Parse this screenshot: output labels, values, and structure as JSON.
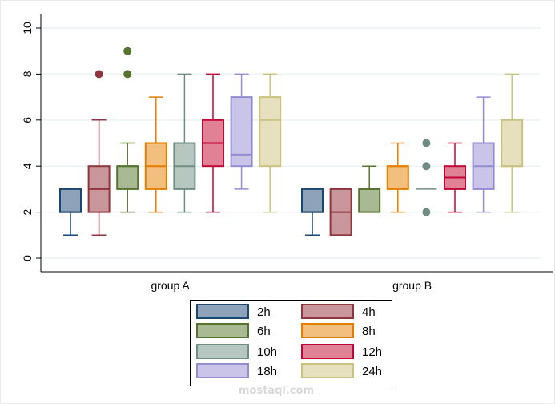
{
  "chart_data": {
    "type": "box",
    "title": "",
    "xlabel": "",
    "ylabel": "",
    "ylim": [
      0,
      10
    ],
    "yticks": [
      0,
      2,
      4,
      6,
      8,
      10
    ],
    "ytick_labels": [
      "0",
      "2",
      "4",
      "6",
      "8",
      "10"
    ],
    "grid": true,
    "legend_position": "bottom",
    "categories": [
      "group A",
      "group B"
    ],
    "series": [
      {
        "name": "2h",
        "fill": "#8ea3b9",
        "stroke": "#1a476f",
        "groups": [
          {
            "q1": 2,
            "median": 2,
            "q3": 3,
            "whisker_low": 1,
            "whisker_high": 3,
            "outliers": []
          },
          {
            "q1": 2,
            "median": 2,
            "q3": 3,
            "whisker_low": 1,
            "whisker_high": 3,
            "outliers": []
          }
        ]
      },
      {
        "name": "4h",
        "fill": "#c8969b",
        "stroke": "#90353b",
        "groups": [
          {
            "q1": 2,
            "median": 3,
            "q3": 4,
            "whisker_low": 1,
            "whisker_high": 6,
            "outliers": [
              8
            ]
          },
          {
            "q1": 1,
            "median": 2,
            "q3": 3,
            "whisker_low": 1,
            "whisker_high": 3,
            "outliers": []
          }
        ]
      },
      {
        "name": "6h",
        "fill": "#a8b994",
        "stroke": "#55752f",
        "groups": [
          {
            "q1": 3,
            "median": 4,
            "q3": 4,
            "whisker_low": 2,
            "whisker_high": 5,
            "outliers": [
              8,
              9
            ]
          },
          {
            "q1": 2,
            "median": 3,
            "q3": 3,
            "whisker_low": 2,
            "whisker_high": 4,
            "outliers": []
          }
        ]
      },
      {
        "name": "8h",
        "fill": "#f2bf7f",
        "stroke": "#e37e00",
        "groups": [
          {
            "q1": 3,
            "median": 4,
            "q3": 5,
            "whisker_low": 2,
            "whisker_high": 7,
            "outliers": []
          },
          {
            "q1": 3,
            "median": 4,
            "q3": 4,
            "whisker_low": 2,
            "whisker_high": 5,
            "outliers": []
          }
        ]
      },
      {
        "name": "10h",
        "fill": "#b6c6c0",
        "stroke": "#6e8e84",
        "groups": [
          {
            "q1": 3,
            "median": 4,
            "q3": 5,
            "whisker_low": 2,
            "whisker_high": 8,
            "outliers": []
          },
          {
            "q1": 3,
            "median": 3,
            "q3": 3,
            "whisker_low": 3,
            "whisker_high": 3,
            "outliers": [
              2,
              4,
              5
            ]
          }
        ]
      },
      {
        "name": "12h",
        "fill": "#e08196",
        "stroke": "#c10534",
        "groups": [
          {
            "q1": 4,
            "median": 5,
            "q3": 6,
            "whisker_low": 2,
            "whisker_high": 8,
            "outliers": []
          },
          {
            "q1": 3,
            "median": 3.5,
            "q3": 4,
            "whisker_low": 2,
            "whisker_high": 5,
            "outliers": []
          }
        ]
      },
      {
        "name": "18h",
        "fill": "#cac4e8",
        "stroke": "#938dd2",
        "groups": [
          {
            "q1": 4,
            "median": 4.5,
            "q3": 7,
            "whisker_low": 3,
            "whisker_high": 8,
            "outliers": []
          },
          {
            "q1": 3,
            "median": 4,
            "q3": 5,
            "whisker_low": 2,
            "whisker_high": 7,
            "outliers": []
          }
        ]
      },
      {
        "name": "24h",
        "fill": "#e6e0bf",
        "stroke": "#cac27e",
        "groups": [
          {
            "q1": 4,
            "median": 6,
            "q3": 7,
            "whisker_low": 2,
            "whisker_high": 8,
            "outliers": []
          },
          {
            "q1": 4,
            "median": 4,
            "q3": 6,
            "whisker_low": 2,
            "whisker_high": 8,
            "outliers": []
          }
        ]
      }
    ]
  },
  "watermark": {
    "text": "mostaql.com"
  }
}
